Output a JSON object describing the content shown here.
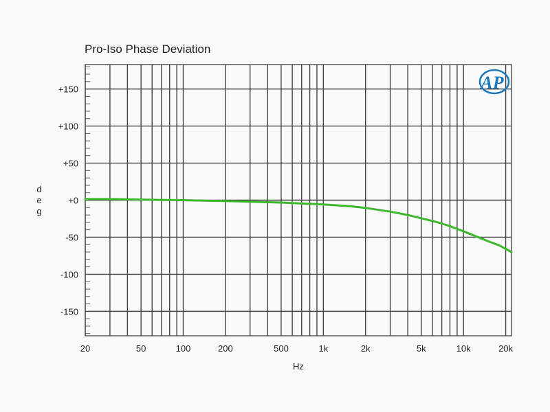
{
  "chart_data": {
    "type": "line",
    "title": "Pro-Iso Phase Deviation",
    "xlabel": "Hz",
    "ylabel": "deg",
    "xscale": "log",
    "xlim": [
      20,
      22000
    ],
    "ylim": [
      -183,
      183
    ],
    "grid": true,
    "logo": "AP",
    "x_ticks": [
      {
        "value": 20,
        "label": "20"
      },
      {
        "value": 50,
        "label": "50"
      },
      {
        "value": 100,
        "label": "100"
      },
      {
        "value": 200,
        "label": "200"
      },
      {
        "value": 500,
        "label": "500"
      },
      {
        "value": 1000,
        "label": "1k"
      },
      {
        "value": 2000,
        "label": "2k"
      },
      {
        "value": 5000,
        "label": "5k"
      },
      {
        "value": 10000,
        "label": "10k"
      },
      {
        "value": 20000,
        "label": "20k"
      }
    ],
    "y_ticks": [
      {
        "value": 150,
        "label": "+150"
      },
      {
        "value": 100,
        "label": "+100"
      },
      {
        "value": 50,
        "label": "+50"
      },
      {
        "value": 0,
        "label": "+0"
      },
      {
        "value": -50,
        "label": "-50"
      },
      {
        "value": -100,
        "label": "-100"
      },
      {
        "value": -150,
        "label": "-150"
      }
    ],
    "series": [
      {
        "color": "#3db82c",
        "x": [
          20,
          30,
          40,
          50,
          70,
          100,
          150,
          200,
          300,
          500,
          700,
          1000,
          1500,
          2000,
          3000,
          4000,
          5000,
          6000,
          7000,
          8000,
          10000,
          12000,
          15000,
          18000,
          22000
        ],
        "y": [
          1.5,
          1.5,
          1.2,
          0.8,
          0.3,
          0,
          -0.8,
          -1.2,
          -2,
          -3.2,
          -4.5,
          -5.8,
          -8,
          -10.5,
          -15.5,
          -20,
          -24.5,
          -28,
          -31.5,
          -35,
          -42,
          -48,
          -55.5,
          -61,
          -70
        ]
      }
    ]
  }
}
